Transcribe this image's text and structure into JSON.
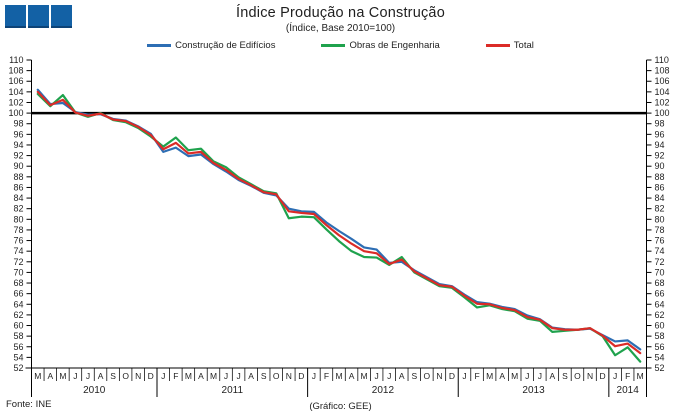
{
  "header": {
    "title": "Índice Produção na Construção",
    "subtitle": "(Índice, Base 2010=100)"
  },
  "footer": {
    "source": "Fonte:  INE",
    "credit": "(Gráfico:  GEE)"
  },
  "logo": {
    "description": "three-blue-squares",
    "color": "#1361A5"
  },
  "chart_data": {
    "type": "line",
    "title": "Índice Produção na Construção",
    "subtitle": "(Índice, Base 2010=100)",
    "legend_position": "top",
    "grid": false,
    "baseline": 100,
    "ylim": [
      52,
      110
    ],
    "ytick_step": 2,
    "axis_color": "#000000",
    "baseline_color": "#000000",
    "x_months": [
      "M",
      "A",
      "M",
      "J",
      "J",
      "A",
      "S",
      "O",
      "N",
      "D",
      "J",
      "F",
      "M",
      "A",
      "M",
      "J",
      "J",
      "A",
      "S",
      "O",
      "N",
      "D",
      "J",
      "F",
      "M",
      "A",
      "M",
      "J",
      "J",
      "A",
      "S",
      "O",
      "N",
      "D",
      "J",
      "F",
      "M",
      "A",
      "M",
      "J",
      "J",
      "A",
      "S",
      "O",
      "N",
      "D",
      "J",
      "F",
      "M"
    ],
    "years": [
      {
        "label": "2010",
        "months": 10
      },
      {
        "label": "2011",
        "months": 12
      },
      {
        "label": "2012",
        "months": 12
      },
      {
        "label": "2013",
        "months": 12
      },
      {
        "label": "2014",
        "months": 3
      }
    ],
    "series": [
      {
        "name": "Construção de Edifícios",
        "color": "#2D6EB4",
        "values": [
          104.4,
          101.7,
          101.9,
          100.2,
          99.7,
          99.8,
          98.9,
          98.6,
          97.5,
          96.1,
          92.7,
          93.5,
          91.9,
          92.2,
          90.4,
          89.0,
          87.4,
          86.3,
          85.0,
          84.5,
          82.0,
          81.5,
          81.4,
          79.4,
          77.8,
          76.3,
          74.7,
          74.3,
          71.8,
          72.0,
          70.4,
          69.1,
          67.8,
          67.4,
          65.8,
          64.4,
          64.1,
          63.5,
          63.1,
          61.9,
          61.2,
          59.6,
          59.3,
          59.2,
          59.4,
          58.2,
          57.0,
          57.2,
          55.5
        ]
      },
      {
        "name": "Obras de Engenharia",
        "color": "#1FA24D",
        "values": [
          103.6,
          101.3,
          103.4,
          100.1,
          99.3,
          100.0,
          98.7,
          98.3,
          97.2,
          95.6,
          93.7,
          95.4,
          93.0,
          93.3,
          90.9,
          89.8,
          87.9,
          86.6,
          85.3,
          84.9,
          80.2,
          80.5,
          80.4,
          78.1,
          75.9,
          74.0,
          72.9,
          72.8,
          71.4,
          72.9,
          70.0,
          68.7,
          67.4,
          67.1,
          65.3,
          63.4,
          63.8,
          63.1,
          62.7,
          61.3,
          60.9,
          58.8,
          59.0,
          59.2,
          59.5,
          58.0,
          54.4,
          55.9,
          53.2
        ]
      },
      {
        "name": "Total",
        "color": "#DB2B27",
        "values": [
          104.0,
          101.5,
          102.5,
          100.1,
          99.5,
          99.9,
          98.8,
          98.5,
          97.4,
          95.9,
          93.2,
          94.4,
          92.4,
          92.7,
          90.6,
          89.3,
          87.6,
          86.4,
          85.1,
          84.7,
          81.5,
          81.2,
          81.0,
          78.9,
          77.0,
          75.4,
          74.0,
          73.6,
          71.6,
          72.4,
          70.2,
          68.9,
          67.6,
          67.3,
          65.6,
          64.1,
          64.0,
          63.3,
          62.9,
          61.6,
          61.1,
          59.5,
          59.2,
          59.2,
          59.5,
          58.1,
          56.1,
          56.6,
          54.8
        ]
      }
    ]
  }
}
